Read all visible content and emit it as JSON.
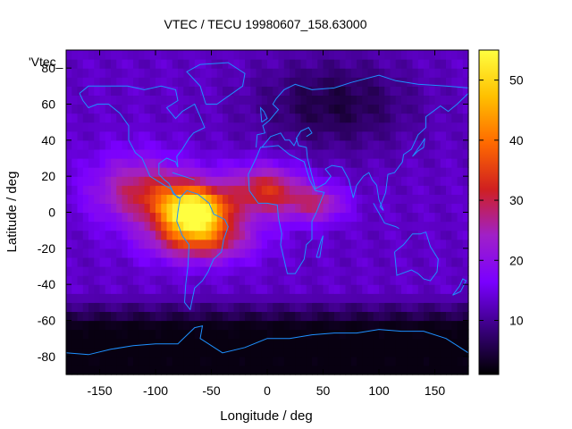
{
  "chart_data": {
    "type": "heatmap",
    "title": "VTEC / TECU 19980607_158.63000",
    "xlabel": "Longitude / deg",
    "ylabel": "Latitude / deg",
    "key_label": "'Vtec_",
    "xlim": [
      -180,
      180
    ],
    "ylim": [
      -90,
      90
    ],
    "x_ticks": [
      -150,
      -100,
      -50,
      0,
      50,
      100,
      150
    ],
    "y_ticks": [
      -80,
      -60,
      -40,
      -20,
      0,
      20,
      40,
      60,
      80
    ],
    "colorbar": {
      "range": [
        1,
        55
      ],
      "ticks": [
        10,
        20,
        30,
        40,
        50
      ],
      "palette": [
        "#000000",
        "#3a0080",
        "#7a00ff",
        "#a020c8",
        "#d02020",
        "#ff6a00",
        "#ffc000",
        "#ffff40"
      ]
    },
    "field": {
      "background": 13,
      "peak": {
        "lon": -65,
        "lat": 0,
        "value": 55
      },
      "anomaly_crests": [
        {
          "lon": -100,
          "lat": 15,
          "value": 32
        },
        {
          "lon": -60,
          "lat": -18,
          "value": 36
        },
        {
          "lon": 0,
          "lat": 15,
          "value": 34
        },
        {
          "lon": 40,
          "lat": 5,
          "value": 28
        }
      ],
      "south_polar_min": 2
    }
  }
}
